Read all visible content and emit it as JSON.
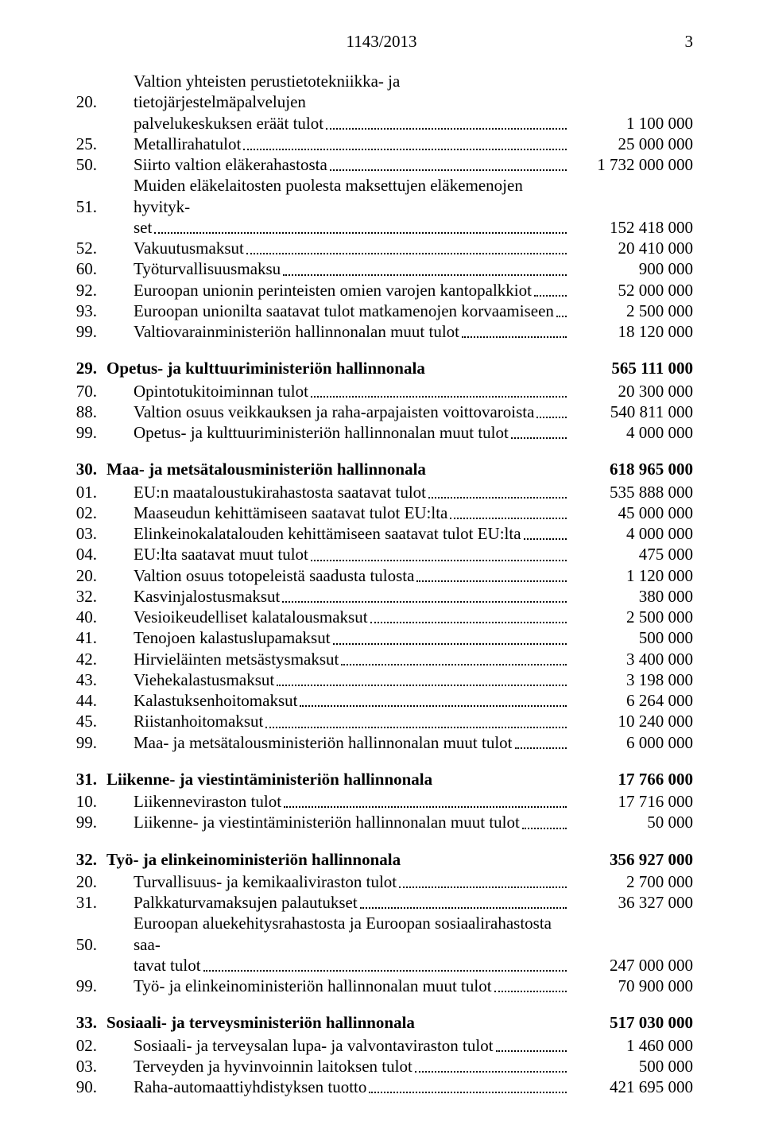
{
  "header": {
    "doc_id": "1143/2013",
    "page_number": "3"
  },
  "sections": [
    {
      "continuation": true,
      "rows": [
        {
          "num": "20.",
          "label_lines": [
            "Valtion yhteisten perustietotekniikka- ja tietojärjestelmäpalvelujen",
            "palvelukeskuksen eräät tulot"
          ],
          "value": "1 100 000"
        },
        {
          "num": "25.",
          "label_lines": [
            "Metallirahatulot"
          ],
          "value": "25 000 000"
        },
        {
          "num": "50.",
          "label_lines": [
            "Siirto valtion eläkerahastosta"
          ],
          "value": "1 732 000 000"
        },
        {
          "num": "51.",
          "label_lines": [
            "Muiden eläkelaitosten puolesta maksettujen eläkemenojen hyvityk-",
            "set"
          ],
          "value": "152 418 000"
        },
        {
          "num": "52.",
          "label_lines": [
            "Vakuutusmaksut"
          ],
          "value": "20 410 000"
        },
        {
          "num": "60.",
          "label_lines": [
            "Työturvallisuusmaksu"
          ],
          "value": "900 000"
        },
        {
          "num": "92.",
          "label_lines": [
            "Euroopan unionin perinteisten omien varojen kantopalkkiot"
          ],
          "value": "52 000 000"
        },
        {
          "num": "93.",
          "label_lines": [
            "Euroopan unionilta saatavat tulot matkamenojen korvaamiseen"
          ],
          "value": "2 500 000"
        },
        {
          "num": "99.",
          "label_lines": [
            "Valtiovarainministeriön hallinnonalan muut tulot"
          ],
          "value": "18 120 000"
        }
      ]
    },
    {
      "heading_num": "29.",
      "heading_label": "Opetus- ja kulttuuriministeriön hallinnonala",
      "heading_value": "565 111 000",
      "rows": [
        {
          "num": "70.",
          "label_lines": [
            "Opintotukitoiminnan tulot"
          ],
          "value": "20 300 000"
        },
        {
          "num": "88.",
          "label_lines": [
            "Valtion osuus veikkauksen ja raha-arpajaisten voittovaroista"
          ],
          "value": "540 811 000"
        },
        {
          "num": "99.",
          "label_lines": [
            "Opetus- ja kulttuuriministeriön hallinnonalan muut tulot"
          ],
          "value": "4 000 000"
        }
      ]
    },
    {
      "heading_num": "30.",
      "heading_label": "Maa- ja metsätalousministeriön hallinnonala",
      "heading_value": "618 965 000",
      "rows": [
        {
          "num": "01.",
          "label_lines": [
            "EU:n maataloustukirahastosta saatavat tulot"
          ],
          "value": "535 888 000"
        },
        {
          "num": "02.",
          "label_lines": [
            "Maaseudun kehittämiseen saatavat tulot EU:lta"
          ],
          "value": "45 000 000"
        },
        {
          "num": "03.",
          "label_lines": [
            "Elinkeinokalatalouden kehittämiseen saatavat tulot EU:lta"
          ],
          "value": "4 000 000"
        },
        {
          "num": "04.",
          "label_lines": [
            "EU:lta saatavat muut tulot"
          ],
          "value": "475 000"
        },
        {
          "num": "20.",
          "label_lines": [
            "Valtion osuus totopeleistä saadusta tulosta"
          ],
          "value": "1 120 000"
        },
        {
          "num": "32.",
          "label_lines": [
            "Kasvinjalostusmaksut"
          ],
          "value": "380 000"
        },
        {
          "num": "40.",
          "label_lines": [
            "Vesioikeudelliset kalatalousmaksut"
          ],
          "value": "2 500 000"
        },
        {
          "num": "41.",
          "label_lines": [
            "Tenojoen kalastuslupamaksut"
          ],
          "value": "500 000"
        },
        {
          "num": "42.",
          "label_lines": [
            "Hirvieläinten metsästysmaksut"
          ],
          "value": "3 400 000"
        },
        {
          "num": "43.",
          "label_lines": [
            "Viehekalastusmaksut"
          ],
          "value": "3 198 000"
        },
        {
          "num": "44.",
          "label_lines": [
            "Kalastuksenhoitomaksut"
          ],
          "value": "6 264 000"
        },
        {
          "num": "45.",
          "label_lines": [
            "Riistanhoitomaksut"
          ],
          "value": "10 240 000"
        },
        {
          "num": "99.",
          "label_lines": [
            "Maa- ja metsätalousministeriön hallinnonalan muut tulot"
          ],
          "value": "6 000 000"
        }
      ]
    },
    {
      "heading_num": "31.",
      "heading_label": "Liikenne- ja viestintäministeriön hallinnonala",
      "heading_value": "17 766 000",
      "rows": [
        {
          "num": "10.",
          "label_lines": [
            "Liikenneviraston tulot"
          ],
          "value": "17 716 000"
        },
        {
          "num": "99.",
          "label_lines": [
            "Liikenne- ja viestintäministeriön hallinnonalan muut tulot"
          ],
          "value": "50 000"
        }
      ]
    },
    {
      "heading_num": "32.",
      "heading_label": "Työ- ja elinkeinoministeriön hallinnonala",
      "heading_value": "356 927 000",
      "rows": [
        {
          "num": "20.",
          "label_lines": [
            "Turvallisuus- ja kemikaaliviraston tulot"
          ],
          "value": "2 700 000"
        },
        {
          "num": "31.",
          "label_lines": [
            "Palkkaturvamaksujen palautukset"
          ],
          "value": "36 327 000"
        },
        {
          "num": "50.",
          "label_lines": [
            "Euroopan aluekehitysrahastosta ja Euroopan sosiaalirahastosta saa-",
            "tavat tulot"
          ],
          "value": "247 000 000"
        },
        {
          "num": "99.",
          "label_lines": [
            "Työ- ja elinkeinoministeriön hallinnonalan muut tulot"
          ],
          "value": "70 900 000"
        }
      ]
    },
    {
      "heading_num": "33.",
      "heading_label": "Sosiaali- ja terveysministeriön hallinnonala",
      "heading_value": "517 030 000",
      "rows": [
        {
          "num": "02.",
          "label_lines": [
            "Sosiaali- ja terveysalan lupa- ja valvontaviraston tulot"
          ],
          "value": "1 460 000"
        },
        {
          "num": "03.",
          "label_lines": [
            "Terveyden ja hyvinvoinnin laitoksen tulot"
          ],
          "value": "500 000"
        },
        {
          "num": "90.",
          "label_lines": [
            "Raha-automaattiyhdistyksen tuotto"
          ],
          "value": "421 695 000"
        }
      ]
    }
  ]
}
